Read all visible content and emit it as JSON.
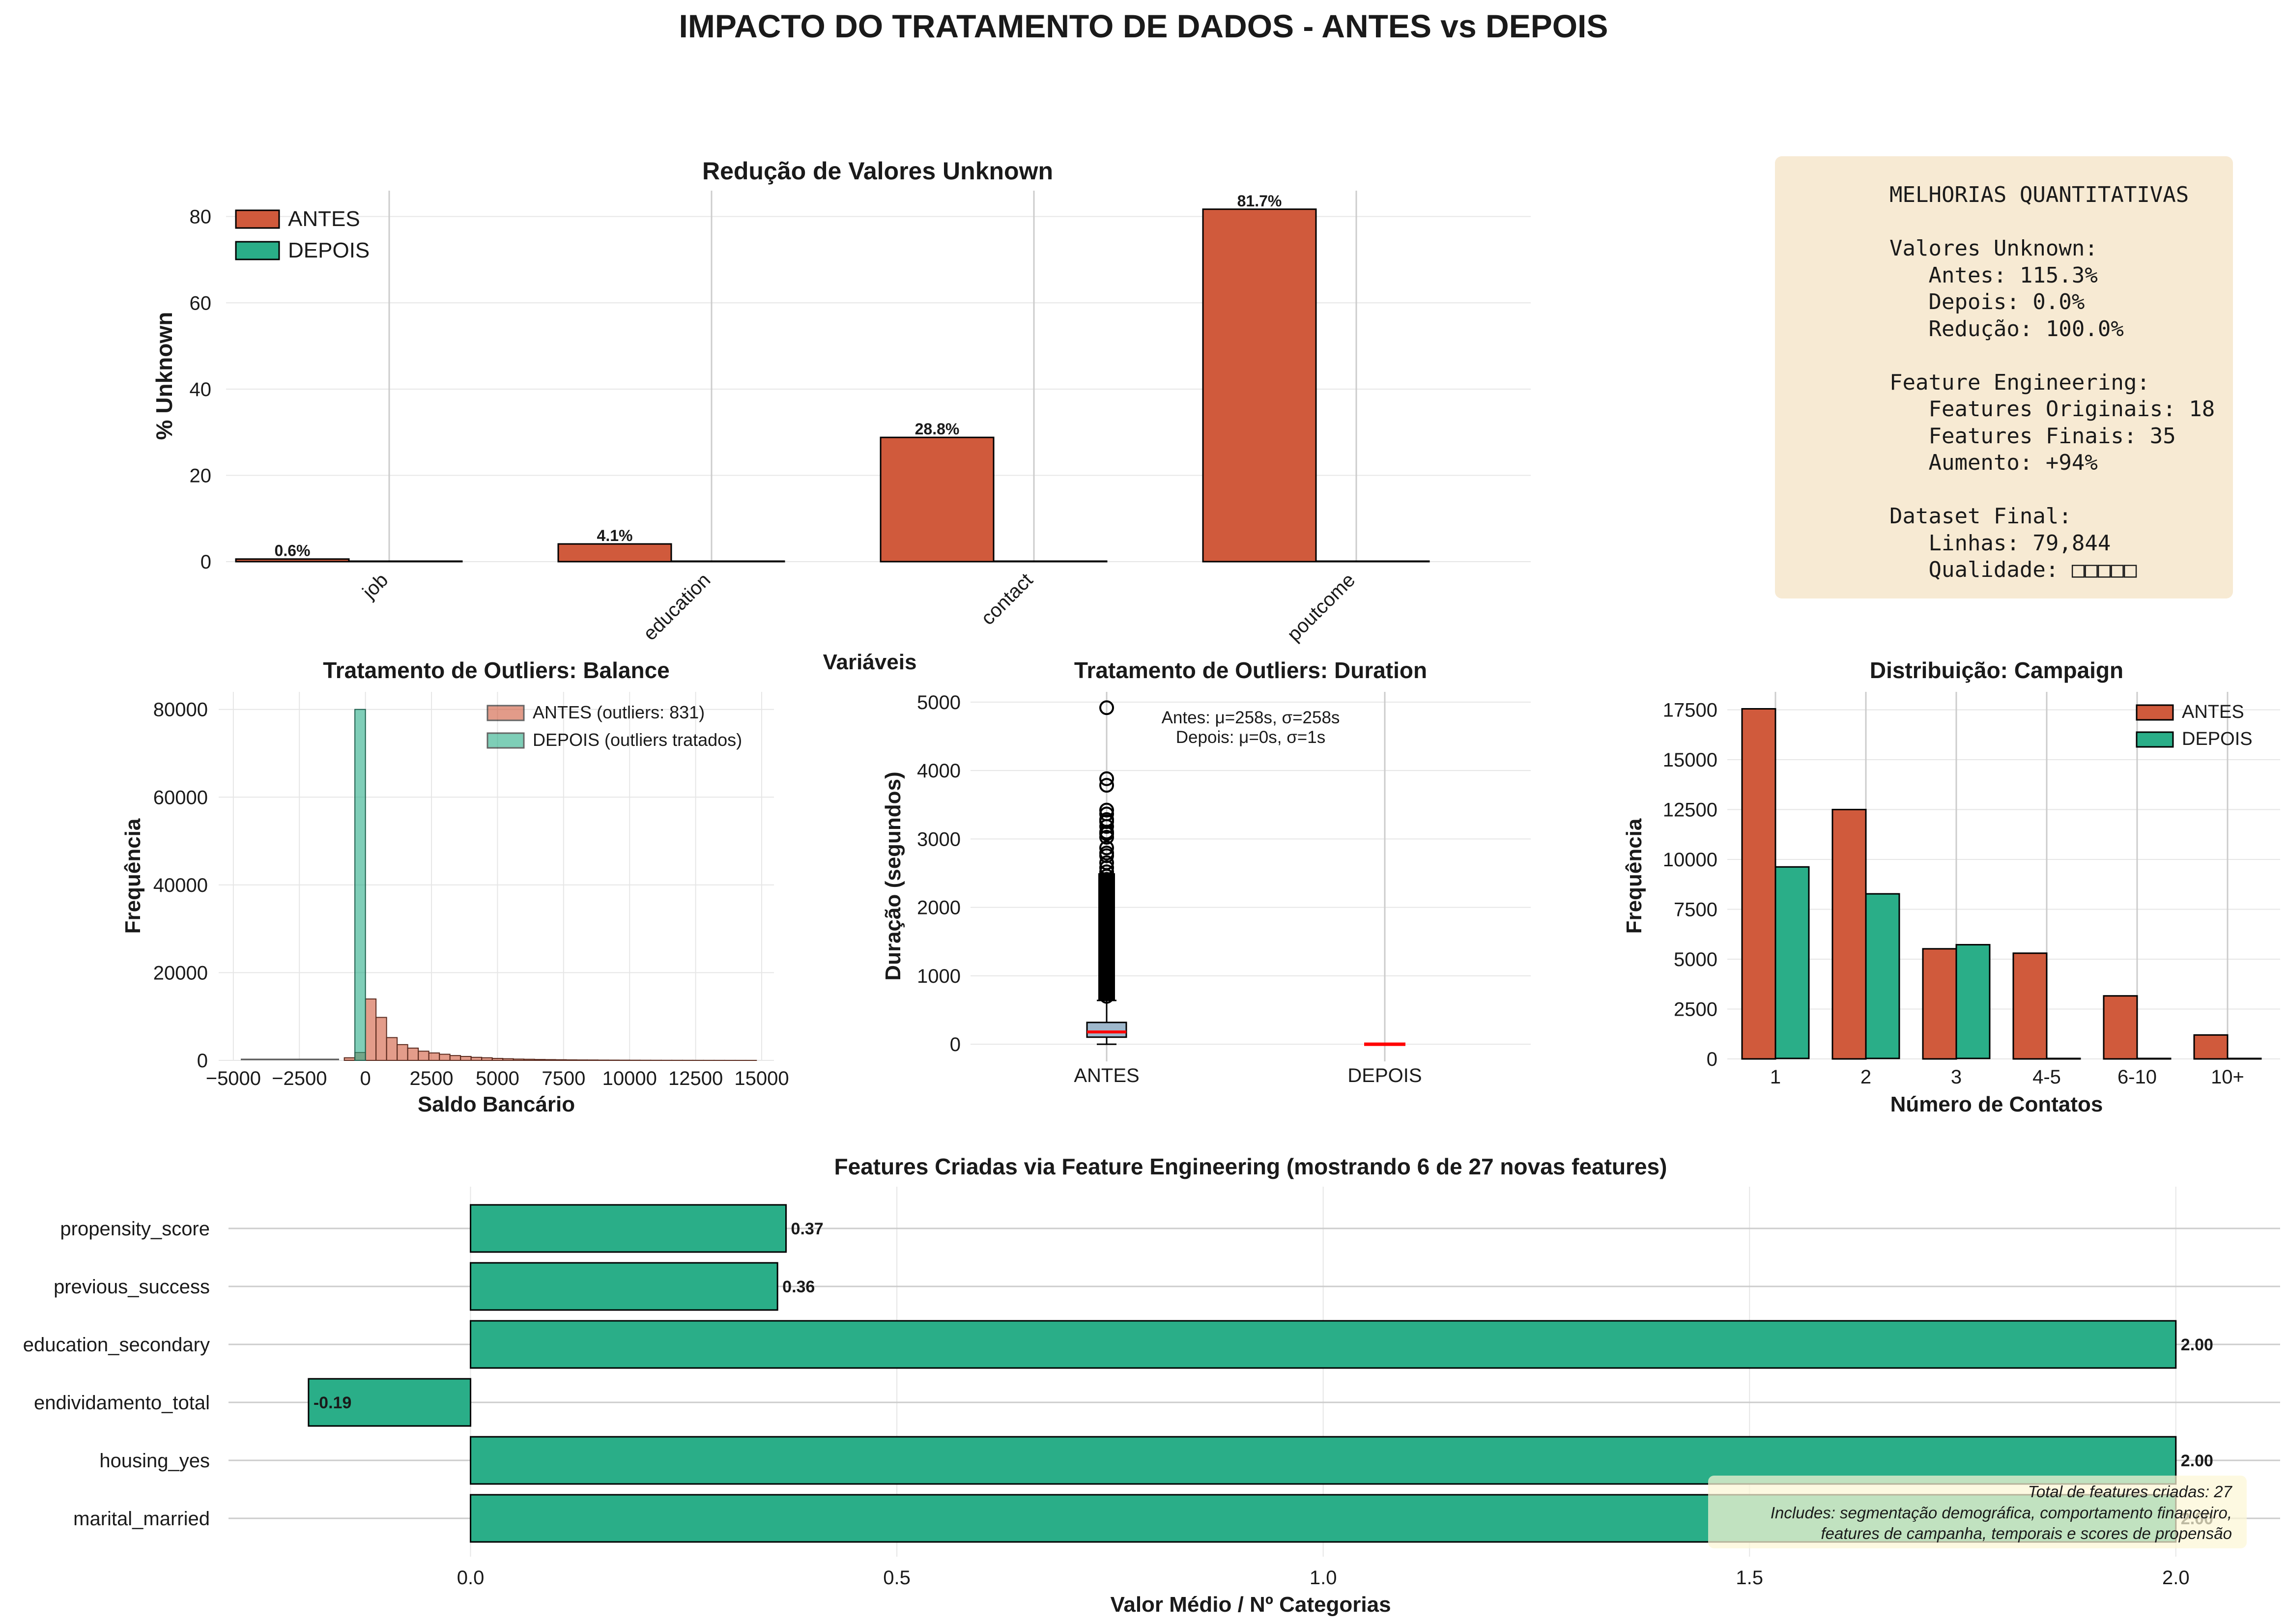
{
  "title": "IMPACTO DO TRATAMENTO DE DADOS - ANTES vs DEPOIS",
  "colors": {
    "antes": "#d05a3c",
    "depois": "#2aae88",
    "box_fill": "#f7ead3",
    "note_fill": "#fcf6d6",
    "median_line": "#ff0000",
    "boxplot_fill": "#9fb8cc"
  },
  "quant_box": {
    "lines": [
      "MELHORIAS QUANTITATIVAS",
      "",
      "Valores Unknown:",
      "   Antes: 115.3%",
      "   Depois: 0.0%",
      "   Redução: 100.0%",
      "",
      "Feature Engineering:",
      "   Features Originais: 18",
      "   Features Finais: 35",
      "   Aumento: +94%",
      "",
      "Dataset Final:",
      "   Linhas: 79,844",
      "   Qualidade: □□□□□"
    ]
  },
  "note": {
    "line1": "Total de features criadas: 27",
    "line2": "Includes: segmentação demográfica, comportamento financeiro,",
    "line3": "features de campanha, temporais e scores de propensão"
  },
  "chart_data": [
    {
      "id": "unknown",
      "type": "bar",
      "title": "Redução de Valores Unknown",
      "xlabel": "Variáveis",
      "ylabel": "% Unknown",
      "categories": [
        "job",
        "education",
        "contact",
        "poutcome"
      ],
      "series": [
        {
          "name": "ANTES",
          "values": [
            0.6,
            4.1,
            28.8,
            81.7
          ]
        },
        {
          "name": "DEPOIS",
          "values": [
            0,
            0,
            0,
            0
          ]
        }
      ],
      "data_labels": [
        "0.6%",
        "4.1%",
        "28.8%",
        "81.7%"
      ],
      "ylim": [
        0,
        86
      ],
      "yticks": [
        0,
        20,
        40,
        60,
        80
      ],
      "legend": "top-left",
      "grid": true
    },
    {
      "id": "balance",
      "type": "histogram",
      "title": "Tratamento de Outliers: Balance",
      "xlabel": "Saldo Bancário",
      "ylabel": "Frequência",
      "xlim": [
        -5500,
        15000
      ],
      "ylim": [
        0,
        84000
      ],
      "xticks": [
        -5000,
        -2500,
        0,
        2500,
        5000,
        7500,
        10000,
        12500,
        15000
      ],
      "xtick_labels": [
        "−5000",
        "−2500",
        "0",
        "2500",
        "5000",
        "7500",
        "10000",
        "12500",
        "15000"
      ],
      "yticks": [
        0,
        20000,
        40000,
        60000,
        80000
      ],
      "bin_width": 400,
      "series": [
        {
          "name": "ANTES (outliers: 831)",
          "bins": [
            [
              -800,
              600
            ],
            [
              -400,
              1800
            ],
            [
              0,
              14000
            ],
            [
              400,
              9800
            ],
            [
              800,
              5200
            ],
            [
              1200,
              3600
            ],
            [
              1600,
              2800
            ],
            [
              2000,
              2100
            ],
            [
              2400,
              1700
            ],
            [
              2800,
              1400
            ],
            [
              3200,
              1100
            ],
            [
              3600,
              900
            ],
            [
              4000,
              700
            ],
            [
              4400,
              600
            ],
            [
              4800,
              450
            ],
            [
              5200,
              380
            ],
            [
              5600,
              300
            ],
            [
              6000,
              260
            ],
            [
              6400,
              210
            ],
            [
              6800,
              180
            ],
            [
              7200,
              150
            ],
            [
              7600,
              120
            ],
            [
              8000,
              100
            ],
            [
              8400,
              90
            ],
            [
              8800,
              70
            ],
            [
              9200,
              60
            ],
            [
              9600,
              50
            ],
            [
              10000,
              40
            ],
            [
              10400,
              30
            ],
            [
              10800,
              25
            ],
            [
              11200,
              20
            ],
            [
              11600,
              18
            ],
            [
              12000,
              15
            ],
            [
              12400,
              12
            ],
            [
              12800,
              10
            ],
            [
              13200,
              8
            ],
            [
              13600,
              6
            ],
            [
              14000,
              5
            ],
            [
              14400,
              4
            ]
          ]
        },
        {
          "name": "DEPOIS (outliers tratados)",
          "bins": [
            [
              -400,
              80000
            ]
          ]
        }
      ],
      "legend": "top-right",
      "grid": true
    },
    {
      "id": "duration",
      "type": "box",
      "title": "Tratamento de Outliers: Duration",
      "ylabel": "Duração (segundos)",
      "categories": [
        "ANTES",
        "DEPOIS"
      ],
      "ylim": [
        -250,
        5150
      ],
      "yticks": [
        0,
        1000,
        2000,
        3000,
        4000,
        5000
      ],
      "annotation": [
        "Antes: μ=258s, σ=258s",
        "Depois: μ=0s, σ=1s"
      ],
      "boxes": [
        {
          "q1": 104,
          "median": 180,
          "q3": 319,
          "whisker_low": 0,
          "whisker_high": 640,
          "outliers": [
            4918,
            3881,
            3785,
            3422,
            3366,
            3284,
            3253,
            3183,
            3102,
            3076,
            3025,
            2870,
            2795,
            2755,
            2653,
            2580,
            2520,
            2456,
            2410,
            2300,
            2200,
            2100,
            2000,
            1900,
            1800,
            1700,
            1600,
            1500,
            1400,
            1300,
            1200,
            1100,
            1000,
            900,
            800,
            700
          ]
        },
        {
          "q1": 0,
          "median": 0,
          "q3": 0,
          "whisker_low": 0,
          "whisker_high": 0,
          "outliers": []
        }
      ],
      "grid": true
    },
    {
      "id": "campaign",
      "type": "bar",
      "title": "Distribuição: Campaign",
      "xlabel": "Número de Contatos",
      "ylabel": "Frequência",
      "categories": [
        "1",
        "2",
        "3",
        "4-5",
        "6-10",
        "10+"
      ],
      "series": [
        {
          "name": "ANTES",
          "values": [
            17550,
            12500,
            5520,
            5300,
            3160,
            1200
          ]
        },
        {
          "name": "DEPOIS",
          "values": [
            9600,
            8250,
            5700,
            0,
            0,
            0
          ]
        }
      ],
      "ylim": [
        0,
        18400
      ],
      "yticks": [
        0,
        2500,
        5000,
        7500,
        10000,
        12500,
        15000,
        17500
      ],
      "legend": "top-right",
      "grid": true
    },
    {
      "id": "features",
      "type": "barh",
      "title": "Features Criadas via Feature Engineering (mostrando 6 de 27 novas features)",
      "xlabel": "Valor Médio / Nº Categorias",
      "categories": [
        "propensity_score",
        "previous_success",
        "education_secondary",
        "endividamento_total",
        "housing_yes",
        "marital_married"
      ],
      "values": [
        0.37,
        0.36,
        2.0,
        -0.19,
        2.0,
        2.0
      ],
      "data_labels": [
        "0.37",
        "0.36",
        "2.00",
        "-0.19",
        "2.00",
        "2.00"
      ],
      "xlim": [
        -0.3,
        2.12
      ],
      "xticks": [
        0.0,
        0.5,
        1.0,
        1.5,
        2.0
      ],
      "xtick_labels": [
        "0.0",
        "0.5",
        "1.0",
        "1.5",
        "2.0"
      ],
      "grid": true
    }
  ]
}
